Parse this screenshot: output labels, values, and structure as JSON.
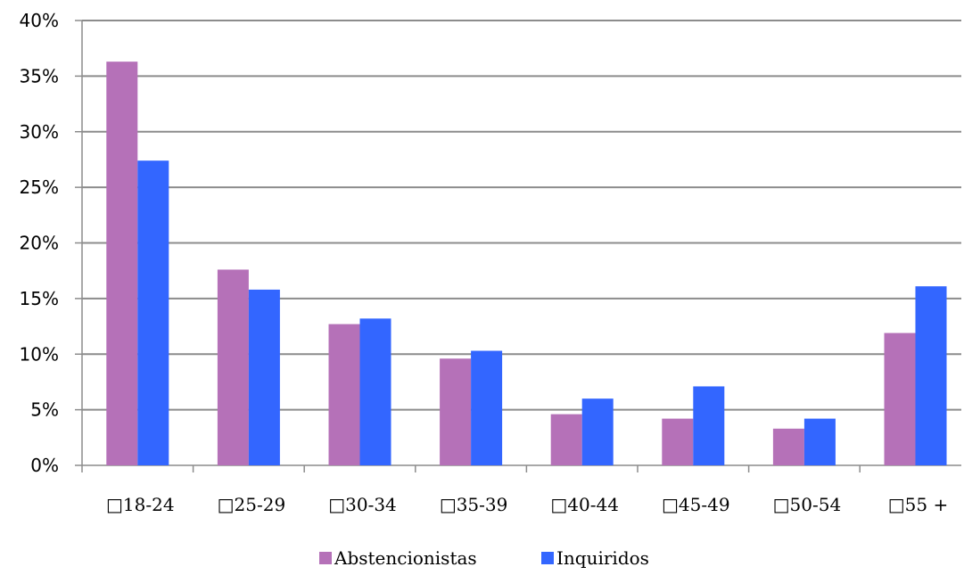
{
  "chart_data": {
    "type": "bar",
    "title": "",
    "xlabel": "",
    "ylabel": "",
    "categories": [
      "□18-24",
      "□25-29",
      "□30-34",
      "□35-39",
      "□40-44",
      "□45-49",
      "□50-54",
      "□55 +"
    ],
    "series": [
      {
        "name": "Abstencionistas",
        "color": "#b571b8",
        "values": [
          36.3,
          17.6,
          12.7,
          9.6,
          4.6,
          4.2,
          3.3,
          11.9
        ]
      },
      {
        "name": "Inquiridos",
        "color": "#3366ff",
        "values": [
          27.4,
          15.8,
          13.2,
          10.3,
          6.0,
          7.1,
          4.2,
          16.1
        ]
      }
    ],
    "ylim": [
      0,
      40
    ],
    "yticks": [
      "0%",
      "5%",
      "10%",
      "15%",
      "20%",
      "25%",
      "30%",
      "35%",
      "40%"
    ],
    "grid": true,
    "legend": "bottom"
  }
}
